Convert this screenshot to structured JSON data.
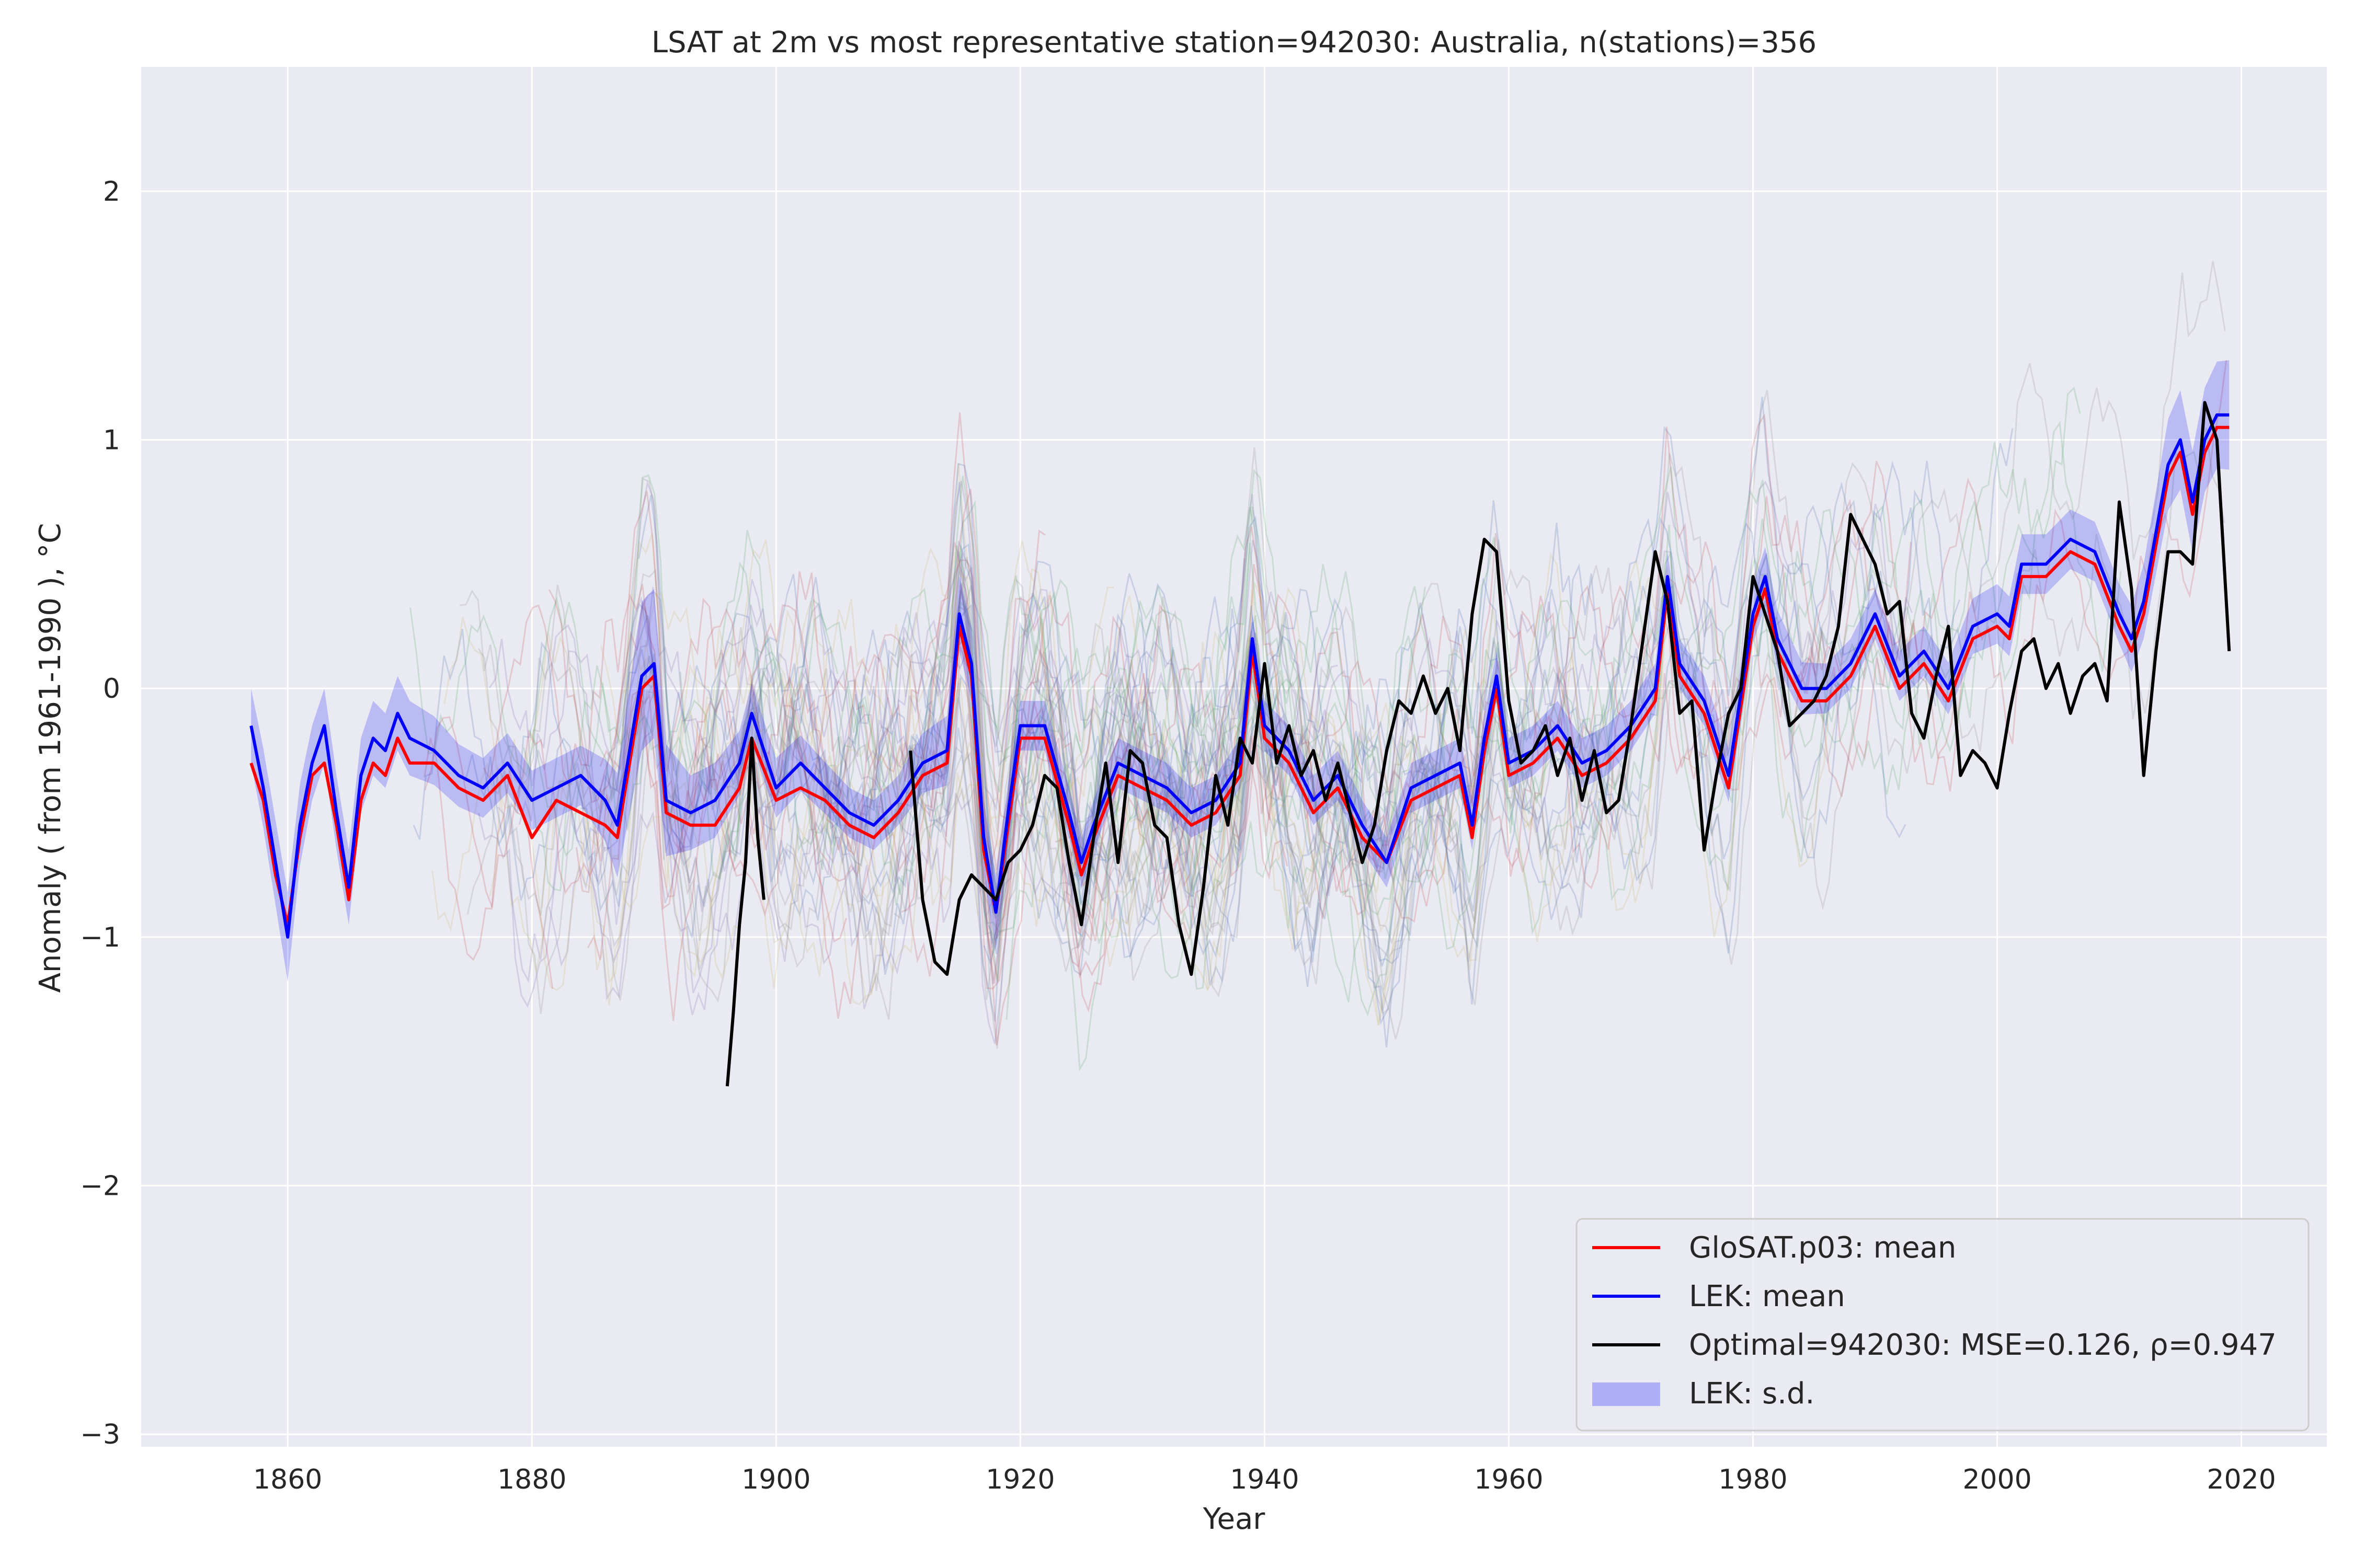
{
  "chart_data": {
    "type": "line",
    "title": "LSAT at 2m vs most representative station=942030: Australia, n(stations)=356",
    "xlabel": "Year",
    "ylabel": "Anomaly ( from 1961-1990 ), °C",
    "xlim": [
      1848,
      2027
    ],
    "ylim": [
      -3.05,
      2.5
    ],
    "x_ticks": [
      1860,
      1880,
      1900,
      1920,
      1940,
      1960,
      1980,
      2000,
      2020
    ],
    "y_ticks": [
      -3,
      -2,
      -1,
      0,
      1,
      2
    ],
    "y_tick_labels": [
      "−3",
      "−2",
      "−1",
      "0",
      "1",
      "2"
    ],
    "grid": true,
    "legend_position": "bottom-right",
    "colors": {
      "plot_background": "#eaeaf2",
      "grid": "#ffffff",
      "glosat_mean": "#ff0000",
      "lek_mean": "#0000ff",
      "optimal": "#000000",
      "lek_sd_fill": "#0000ff",
      "station_traces": [
        "#4c72b0",
        "#c44e52",
        "#55a868",
        "#8c8c8c",
        "#8172b2",
        "#ccb974"
      ]
    },
    "series": [
      {
        "name": "LEK: mean",
        "x": [
          1857,
          1858,
          1859,
          1860,
          1861,
          1862,
          1863,
          1864,
          1865,
          1866,
          1867,
          1868,
          1869,
          1870,
          1872,
          1874,
          1876,
          1878,
          1880,
          1882,
          1884,
          1886,
          1887,
          1889,
          1890,
          1891,
          1893,
          1895,
          1897,
          1898,
          1900,
          1902,
          1904,
          1906,
          1908,
          1910,
          1912,
          1914,
          1915,
          1916,
          1917,
          1918,
          1919,
          1920,
          1922,
          1924,
          1925,
          1926,
          1928,
          1930,
          1932,
          1934,
          1936,
          1938,
          1939,
          1940,
          1942,
          1944,
          1946,
          1948,
          1950,
          1952,
          1954,
          1956,
          1957,
          1958,
          1959,
          1960,
          1962,
          1964,
          1966,
          1968,
          1970,
          1972,
          1973,
          1974,
          1976,
          1978,
          1980,
          1981,
          1982,
          1984,
          1986,
          1988,
          1990,
          1992,
          1994,
          1996,
          1998,
          2000,
          2001,
          2002,
          2004,
          2006,
          2008,
          2010,
          2011,
          2012,
          2014,
          2015,
          2016,
          2017,
          2018,
          2019
        ],
        "y": [
          -0.15,
          -0.4,
          -0.7,
          -1.0,
          -0.55,
          -0.3,
          -0.15,
          -0.5,
          -0.8,
          -0.35,
          -0.2,
          -0.25,
          -0.1,
          -0.2,
          -0.25,
          -0.35,
          -0.4,
          -0.3,
          -0.45,
          -0.4,
          -0.35,
          -0.45,
          -0.55,
          0.05,
          0.1,
          -0.45,
          -0.5,
          -0.45,
          -0.3,
          -0.1,
          -0.4,
          -0.3,
          -0.4,
          -0.5,
          -0.55,
          -0.45,
          -0.3,
          -0.25,
          0.3,
          0.1,
          -0.6,
          -0.9,
          -0.5,
          -0.15,
          -0.15,
          -0.5,
          -0.7,
          -0.55,
          -0.3,
          -0.35,
          -0.4,
          -0.5,
          -0.45,
          -0.3,
          0.2,
          -0.15,
          -0.25,
          -0.45,
          -0.35,
          -0.55,
          -0.7,
          -0.4,
          -0.35,
          -0.3,
          -0.55,
          -0.2,
          0.05,
          -0.3,
          -0.25,
          -0.15,
          -0.3,
          -0.25,
          -0.15,
          0.0,
          0.45,
          0.1,
          -0.05,
          -0.35,
          0.3,
          0.45,
          0.2,
          0.0,
          0.0,
          0.1,
          0.3,
          0.05,
          0.15,
          0.0,
          0.25,
          0.3,
          0.25,
          0.5,
          0.5,
          0.6,
          0.55,
          0.3,
          0.2,
          0.35,
          0.9,
          1.0,
          0.75,
          1.0,
          1.1,
          1.1
        ]
      },
      {
        "name": "GloSAT.p03: mean",
        "x": [
          1857,
          1858,
          1859,
          1860,
          1861,
          1862,
          1863,
          1864,
          1865,
          1866,
          1867,
          1868,
          1869,
          1870,
          1872,
          1874,
          1876,
          1878,
          1880,
          1882,
          1884,
          1886,
          1887,
          1889,
          1890,
          1891,
          1893,
          1895,
          1897,
          1898,
          1900,
          1902,
          1904,
          1906,
          1908,
          1910,
          1912,
          1914,
          1915,
          1916,
          1917,
          1918,
          1919,
          1920,
          1922,
          1924,
          1925,
          1926,
          1928,
          1930,
          1932,
          1934,
          1936,
          1938,
          1939,
          1940,
          1942,
          1944,
          1946,
          1948,
          1950,
          1952,
          1954,
          1956,
          1957,
          1958,
          1959,
          1960,
          1962,
          1964,
          1966,
          1968,
          1970,
          1972,
          1973,
          1974,
          1976,
          1978,
          1980,
          1981,
          1982,
          1984,
          1986,
          1988,
          1990,
          1992,
          1994,
          1996,
          1998,
          2000,
          2001,
          2002,
          2004,
          2006,
          2008,
          2010,
          2011,
          2012,
          2014,
          2015,
          2016,
          2017,
          2018,
          2019
        ],
        "y": [
          -0.3,
          -0.45,
          -0.75,
          -0.95,
          -0.6,
          -0.35,
          -0.3,
          -0.55,
          -0.85,
          -0.45,
          -0.3,
          -0.35,
          -0.2,
          -0.3,
          -0.3,
          -0.4,
          -0.45,
          -0.35,
          -0.6,
          -0.45,
          -0.5,
          -0.55,
          -0.6,
          0.0,
          0.05,
          -0.5,
          -0.55,
          -0.55,
          -0.4,
          -0.2,
          -0.45,
          -0.4,
          -0.45,
          -0.55,
          -0.6,
          -0.5,
          -0.35,
          -0.3,
          0.25,
          0.05,
          -0.65,
          -0.9,
          -0.55,
          -0.2,
          -0.2,
          -0.55,
          -0.75,
          -0.6,
          -0.35,
          -0.4,
          -0.45,
          -0.55,
          -0.5,
          -0.35,
          0.15,
          -0.2,
          -0.3,
          -0.5,
          -0.4,
          -0.6,
          -0.7,
          -0.45,
          -0.4,
          -0.35,
          -0.6,
          -0.25,
          0.0,
          -0.35,
          -0.3,
          -0.2,
          -0.35,
          -0.3,
          -0.2,
          -0.05,
          0.4,
          0.05,
          -0.1,
          -0.4,
          0.25,
          0.4,
          0.15,
          -0.05,
          -0.05,
          0.05,
          0.25,
          0.0,
          0.1,
          -0.05,
          0.2,
          0.25,
          0.2,
          0.45,
          0.45,
          0.55,
          0.5,
          0.25,
          0.15,
          0.3,
          0.85,
          0.95,
          0.7,
          0.95,
          1.05,
          1.05
        ]
      },
      {
        "name": "Optimal=942030: MSE=0.126, ρ=0.947",
        "segments": [
          {
            "x": [
              1896.0,
              1896.5,
              1897.0,
              1897.5,
              1898.0,
              1898.5,
              1899.0
            ],
            "y": [
              -1.6,
              -1.3,
              -0.95,
              -0.7,
              -0.2,
              -0.6,
              -0.85
            ]
          },
          {
            "x": [
              1911,
              1912,
              1913,
              1914,
              1915,
              1916,
              1917,
              1918,
              1919,
              1920,
              1921,
              1922,
              1923,
              1924,
              1925,
              1926,
              1927,
              1928,
              1929,
              1930,
              1931,
              1932,
              1933,
              1934,
              1935,
              1936,
              1937,
              1938,
              1939,
              1940,
              1941,
              1942,
              1943,
              1944,
              1945,
              1946,
              1947,
              1948,
              1949,
              1950,
              1951,
              1952,
              1953,
              1954,
              1955,
              1956,
              1957,
              1958,
              1959,
              1960,
              1961,
              1962,
              1963,
              1964,
              1965,
              1966,
              1967,
              1968,
              1969,
              1970,
              1971,
              1972,
              1973,
              1974,
              1975,
              1976,
              1977,
              1978,
              1979,
              1980,
              1981,
              1982,
              1983,
              1984,
              1985,
              1986,
              1987,
              1988,
              1989,
              1990,
              1991,
              1992,
              1993,
              1994,
              1995,
              1996,
              1997,
              1998,
              1999,
              2000,
              2001,
              2002,
              2003,
              2004,
              2005,
              2006,
              2007,
              2008,
              2009,
              2010,
              2011,
              2012,
              2013,
              2014,
              2015,
              2016,
              2017,
              2018,
              2019
            ],
            "y": [
              -0.25,
              -0.85,
              -1.1,
              -1.15,
              -0.85,
              -0.75,
              -0.8,
              -0.85,
              -0.7,
              -0.65,
              -0.55,
              -0.35,
              -0.4,
              -0.7,
              -0.95,
              -0.6,
              -0.3,
              -0.7,
              -0.25,
              -0.3,
              -0.55,
              -0.6,
              -0.95,
              -1.15,
              -0.8,
              -0.35,
              -0.55,
              -0.2,
              -0.3,
              0.1,
              -0.3,
              -0.15,
              -0.35,
              -0.25,
              -0.45,
              -0.3,
              -0.5,
              -0.7,
              -0.55,
              -0.25,
              -0.05,
              -0.1,
              0.05,
              -0.1,
              0.0,
              -0.25,
              0.3,
              0.6,
              0.55,
              -0.05,
              -0.3,
              -0.25,
              -0.15,
              -0.35,
              -0.2,
              -0.45,
              -0.25,
              -0.5,
              -0.45,
              -0.15,
              0.2,
              0.55,
              0.35,
              -0.1,
              -0.05,
              -0.65,
              -0.35,
              -0.1,
              0.0,
              0.45,
              0.3,
              0.15,
              -0.15,
              -0.1,
              -0.05,
              0.05,
              0.25,
              0.7,
              0.6,
              0.5,
              0.3,
              0.35,
              -0.1,
              -0.2,
              0.05,
              0.25,
              -0.35,
              -0.25,
              -0.3,
              -0.4,
              -0.1,
              0.15,
              0.2,
              0.0,
              0.1,
              -0.1,
              0.05,
              0.1,
              -0.05,
              0.75,
              0.4,
              -0.35,
              0.15,
              0.55,
              0.55,
              0.5,
              1.15,
              1.0,
              0.15
            ]
          }
        ]
      }
    ],
    "sd_band": {
      "name": "LEK: s.d.",
      "x": [
        1857,
        1860,
        1862,
        1865,
        1867,
        1870,
        1875,
        1880,
        1885,
        1889,
        1890,
        1892,
        1895,
        1898,
        1900,
        1905,
        1910,
        1915,
        1918,
        1920,
        1925,
        1930,
        1935,
        1939,
        1945,
        1950,
        1955,
        1959,
        1965,
        1970,
        1973,
        1976,
        1981,
        1985,
        1990,
        1995,
        2000,
        2005,
        2010,
        2012,
        2015,
        2019
      ],
      "half_width": [
        0.15,
        0.18,
        0.15,
        0.15,
        0.15,
        0.15,
        0.12,
        0.12,
        0.12,
        0.3,
        0.3,
        0.15,
        0.15,
        0.12,
        0.12,
        0.1,
        0.1,
        0.15,
        0.15,
        0.1,
        0.1,
        0.1,
        0.1,
        0.1,
        0.1,
        0.1,
        0.1,
        0.1,
        0.1,
        0.1,
        0.1,
        0.1,
        0.12,
        0.1,
        0.1,
        0.1,
        0.12,
        0.12,
        0.12,
        0.15,
        0.2,
        0.22
      ]
    }
  },
  "legend": {
    "items": [
      {
        "label": "GloSAT.p03: mean",
        "kind": "line",
        "color": "#ff0000"
      },
      {
        "label": "LEK: mean",
        "kind": "line",
        "color": "#0000ff"
      },
      {
        "label": "Optimal=942030: MSE=0.126, ρ=0.947",
        "kind": "line",
        "color": "#000000"
      },
      {
        "label": "LEK: s.d.",
        "kind": "patch",
        "color": "#0000ff"
      }
    ]
  }
}
